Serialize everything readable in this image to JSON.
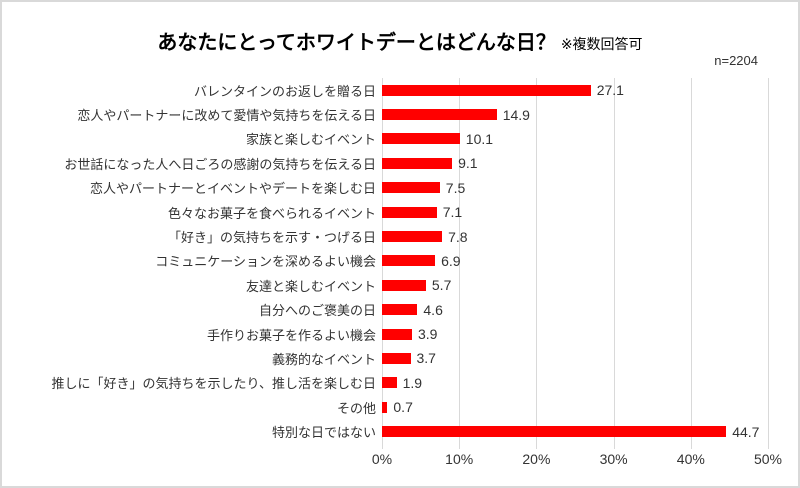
{
  "title": {
    "main": "あなたにとってホワイトデーとはどんな日？",
    "note": "※複数回答可"
  },
  "sample_size": "n=2204",
  "chart_data": {
    "type": "bar",
    "orientation": "horizontal",
    "title": "あなたにとってホワイトデーとはどんな日？ ※複数回答可",
    "categories": [
      "バレンタインのお返しを贈る日",
      "恋人やパートナーに改めて愛情や気持ちを伝える日",
      "家族と楽しむイベント",
      "お世話になった人へ日ごろの感謝の気持ちを伝える日",
      "恋人やパートナーとイベントやデートを楽しむ日",
      "色々なお菓子を食べられるイベント",
      "「好き」の気持ちを示す・つげる日",
      "コミュニケーションを深めるよい機会",
      "友達と楽しむイベント",
      "自分へのご褒美の日",
      "手作りお菓子を作るよい機会",
      "義務的なイベント",
      "推しに「好き」の気持ちを示したり、推し活を楽しむ日",
      "その他",
      "特別な日ではない"
    ],
    "values": [
      27.1,
      14.9,
      10.1,
      9.1,
      7.5,
      7.1,
      7.8,
      6.9,
      5.7,
      4.6,
      3.9,
      3.7,
      1.9,
      0.7,
      44.7
    ],
    "value_labels": true,
    "xlim": [
      0,
      50
    ],
    "x_tick_labels": [
      "0%",
      "10%",
      "20%",
      "30%",
      "40%",
      "50%"
    ],
    "grid": "vertical-on",
    "legend": "none",
    "bar_color": "#FF0000",
    "gridline_color": "#D9D9D9",
    "text_color": "#333333"
  }
}
